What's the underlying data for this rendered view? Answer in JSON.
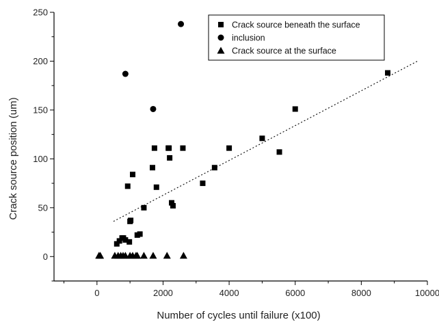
{
  "chart_data": {
    "type": "scatter",
    "xlabel": "Number of cycles until  failure (x100)",
    "ylabel": "Crack source position (um)",
    "xlim": [
      -1300,
      10000
    ],
    "ylim": [
      -25,
      250
    ],
    "xticks": [
      0,
      2000,
      4000,
      6000,
      8000,
      10000
    ],
    "xtick_labels": [
      "0",
      "2000",
      "4000",
      "6000",
      "8000",
      "10000"
    ],
    "yticks": [
      0,
      50,
      100,
      150,
      200,
      250
    ],
    "ytick_labels": [
      "0",
      "50",
      "100",
      "150",
      "200",
      "250"
    ],
    "grid": false,
    "legend_position": "top-right",
    "colors": {
      "marker": "#000000",
      "axis": "#000000",
      "trend": "#000000"
    },
    "series": [
      {
        "name": "Crack source beneath the surface",
        "marker": "square",
        "x": [
          600,
          680,
          760,
          800,
          860,
          930,
          980,
          1000,
          1020,
          1080,
          1220,
          1300,
          1420,
          1680,
          1740,
          1800,
          2160,
          2180,
          2200,
          2260,
          2300,
          2600,
          3200,
          3560,
          4000,
          5000,
          5520,
          6000,
          8800
        ],
        "y": [
          13,
          16,
          19,
          19,
          17,
          72,
          15,
          36,
          37,
          84,
          22,
          23,
          50,
          91,
          111,
          71,
          111,
          111,
          101,
          55,
          52,
          111,
          75,
          91,
          111,
          121,
          107,
          151,
          188
        ]
      },
      {
        "name": "inclusion",
        "marker": "circle",
        "x": [
          860,
          1700,
          2540
        ],
        "y": [
          187,
          151,
          238
        ]
      },
      {
        "name": "Crack source at the surface",
        "marker": "triangle",
        "x": [
          60,
          100,
          540,
          640,
          720,
          790,
          860,
          1000,
          1080,
          1180,
          1220,
          1420,
          1700,
          2120,
          2620
        ],
        "y": [
          1,
          1,
          1,
          1,
          1,
          1,
          1,
          1,
          1,
          1,
          1,
          1,
          1,
          1,
          1
        ]
      }
    ],
    "trend_line": {
      "style": "dotted",
      "x": [
        500,
        9700
      ],
      "y": [
        36,
        200
      ]
    }
  }
}
